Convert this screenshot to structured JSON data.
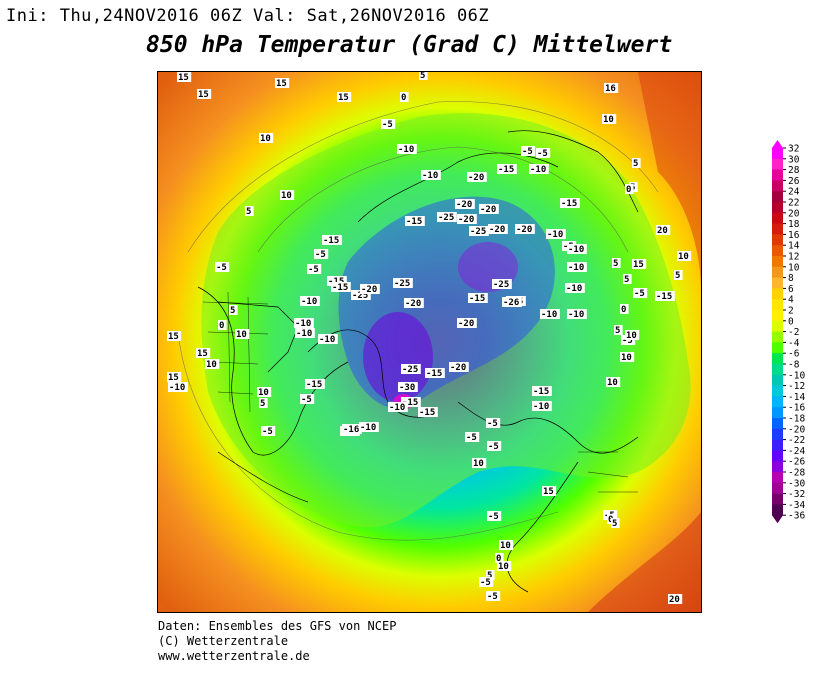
{
  "header": {
    "init_label": "Ini:",
    "init_time": "Thu,24NOV2016 06Z",
    "valid_label": "Val:",
    "valid_time": "Sat,26NOV2016 06Z",
    "title": "850 hPa Temperatur (Grad C) Mittelwert"
  },
  "credits": {
    "line1": "Daten: Ensembles des GFS von NCEP",
    "line2": "(C) Wetterzentrale",
    "line3": "www.wetterzentrale.de"
  },
  "legend": {
    "ticks": [
      "32",
      "30",
      "28",
      "26",
      "24",
      "22",
      "20",
      "18",
      "16",
      "14",
      "12",
      "10",
      "8",
      "6",
      "4",
      "2",
      "0",
      "-2",
      "-4",
      "-6",
      "-8",
      "-10",
      "-12",
      "-14",
      "-16",
      "-18",
      "-20",
      "-22",
      "-24",
      "-26",
      "-28",
      "-30",
      "-32",
      "-34",
      "-36"
    ],
    "colors": [
      "#ff00ff",
      "#ff22c8",
      "#e6009c",
      "#c80064",
      "#a0003c",
      "#b4002d",
      "#c80a14",
      "#d21e0a",
      "#dc3c00",
      "#e65a00",
      "#f07800",
      "#f5961e",
      "#ffb432",
      "#ffd200",
      "#ffe600",
      "#fff000",
      "#dcff00",
      "#96ff00",
      "#50ff00",
      "#00e650",
      "#00dc8c",
      "#00c8b4",
      "#00c8dc",
      "#00b4ff",
      "#0096ff",
      "#0064ff",
      "#1e3cff",
      "#3c1eff",
      "#6400ff",
      "#8c00dc",
      "#b400b4",
      "#a00096",
      "#78006e",
      "#500050"
    ]
  },
  "contour_labels": [
    {
      "t": "15"
    },
    {
      "t": "15"
    },
    {
      "t": "15"
    },
    {
      "t": "5"
    },
    {
      "t": "16"
    },
    {
      "t": "15"
    },
    {
      "t": "15"
    },
    {
      "t": "0"
    },
    {
      "t": "-5"
    },
    {
      "t": "10"
    },
    {
      "t": "10"
    },
    {
      "t": "5"
    },
    {
      "t": "-10"
    },
    {
      "t": "-10"
    },
    {
      "t": "-20"
    },
    {
      "t": "-15"
    },
    {
      "t": "-10"
    },
    {
      "t": "-5"
    },
    {
      "t": "-5"
    },
    {
      "t": "10"
    },
    {
      "t": "5"
    },
    {
      "t": "5"
    },
    {
      "t": "-15"
    },
    {
      "t": "-25"
    },
    {
      "t": "-20"
    },
    {
      "t": "-20"
    },
    {
      "t": "-20"
    },
    {
      "t": "-25"
    },
    {
      "t": "-15"
    },
    {
      "t": "-10"
    },
    {
      "t": "-5"
    },
    {
      "t": "-10"
    },
    {
      "t": "-20"
    },
    {
      "t": "0"
    },
    {
      "t": "-10"
    },
    {
      "t": "-25"
    },
    {
      "t": "-20"
    },
    {
      "t": "-25"
    },
    {
      "t": "-25"
    },
    {
      "t": "-10"
    },
    {
      "t": "-15"
    },
    {
      "t": "-5"
    },
    {
      "t": "-10"
    },
    {
      "t": "-25"
    },
    {
      "t": "-20"
    },
    {
      "t": "-26"
    },
    {
      "t": "-20"
    },
    {
      "t": "-10"
    },
    {
      "t": "-5"
    },
    {
      "t": "-10"
    },
    {
      "t": "-15"
    },
    {
      "t": "-10"
    },
    {
      "t": "-20"
    },
    {
      "t": "-15"
    },
    {
      "t": "-25"
    },
    {
      "t": "-30"
    },
    {
      "t": "-20"
    },
    {
      "t": "-15"
    },
    {
      "t": "-15"
    },
    {
      "t": "-15"
    },
    {
      "t": "-15"
    },
    {
      "t": "-10"
    },
    {
      "t": "-10"
    },
    {
      "t": "-16"
    },
    {
      "t": "-5"
    },
    {
      "t": "-5"
    },
    {
      "t": "-5"
    },
    {
      "t": "-5"
    },
    {
      "t": "-10"
    },
    {
      "t": "-15"
    },
    {
      "t": "-5"
    },
    {
      "t": "0"
    },
    {
      "t": "5"
    },
    {
      "t": "10"
    },
    {
      "t": "10"
    },
    {
      "t": "10"
    },
    {
      "t": "-5"
    },
    {
      "t": "5"
    },
    {
      "t": "10"
    },
    {
      "t": "5"
    },
    {
      "t": "5"
    },
    {
      "t": "15"
    },
    {
      "t": "20"
    },
    {
      "t": "-10"
    },
    {
      "t": "10"
    },
    {
      "t": "15"
    },
    {
      "t": "15"
    },
    {
      "t": "0"
    },
    {
      "t": "10"
    },
    {
      "t": "-5"
    },
    {
      "t": "5"
    },
    {
      "t": "-10"
    },
    {
      "t": "-15"
    },
    {
      "t": "-15"
    },
    {
      "t": "-10"
    },
    {
      "t": "-10"
    },
    {
      "t": "-5"
    },
    {
      "t": "5"
    },
    {
      "t": "10"
    },
    {
      "t": "10"
    },
    {
      "t": "-5"
    },
    {
      "t": "0"
    },
    {
      "t": "-5"
    },
    {
      "t": "5"
    },
    {
      "t": "10"
    },
    {
      "t": "-5"
    },
    {
      "t": "10"
    },
    {
      "t": "15"
    },
    {
      "t": "20"
    },
    {
      "t": "-5"
    },
    {
      "t": "0"
    },
    {
      "t": "5"
    }
  ]
}
